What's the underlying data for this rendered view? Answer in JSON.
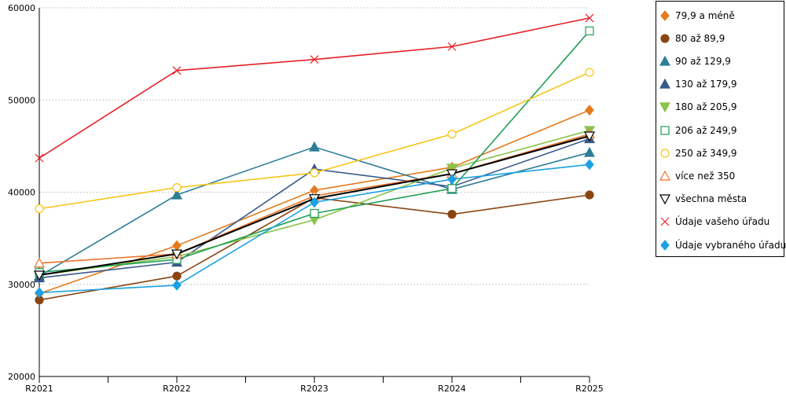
{
  "chart_data": {
    "type": "line",
    "categories": [
      "R2021",
      "R2022",
      "R2023",
      "R2024",
      "R2025"
    ],
    "ylim": [
      20000,
      60000
    ],
    "yticks": [
      20000,
      30000,
      40000,
      50000,
      60000
    ],
    "ytick_labels": [
      "20000",
      "30000",
      "40000",
      "50000",
      "60000"
    ],
    "grid": true,
    "legend_position": "right",
    "series": [
      {
        "name": "79,9 a méně",
        "color": "#E57A1E",
        "marker": "diamond",
        "filled": true,
        "values": [
          29000,
          34200,
          40200,
          42700,
          48900
        ]
      },
      {
        "name": "80 až 89,9",
        "color": "#8B4513",
        "marker": "circle",
        "filled": true,
        "values": [
          28300,
          30900,
          39400,
          37600,
          39700
        ]
      },
      {
        "name": "90 až 129,9",
        "color": "#2E7D97",
        "marker": "triangle",
        "filled": true,
        "values": [
          30900,
          39700,
          44900,
          40300,
          44300
        ]
      },
      {
        "name": "130 až 179,9",
        "color": "#3A5A8C",
        "marker": "triangle",
        "filled": true,
        "values": [
          30700,
          32400,
          42500,
          40600,
          45800
        ]
      },
      {
        "name": "180 až 205,9",
        "color": "#8BC34A",
        "marker": "triangle-down",
        "filled": true,
        "values": [
          31000,
          33000,
          37000,
          42600,
          46700
        ]
      },
      {
        "name": "206 až 249,9",
        "color": "#1FA055",
        "marker": "square",
        "filled": false,
        "values": [
          31300,
          32700,
          37700,
          40400,
          57500
        ]
      },
      {
        "name": "250 až 349,9",
        "color": "#F5C518",
        "marker": "circle",
        "filled": false,
        "values": [
          38200,
          40500,
          42100,
          46300,
          53000
        ]
      },
      {
        "name": "více než 350",
        "color": "#E8732A",
        "marker": "triangle",
        "filled": false,
        "values": [
          32300,
          33300,
          39600,
          42000,
          46300
        ]
      },
      {
        "name": "všechna města",
        "color": "#000000",
        "marker": "triangle-down",
        "filled": false,
        "values": [
          31000,
          33300,
          39300,
          42000,
          46100
        ]
      },
      {
        "name": "Údaje vašeho úřadu",
        "color": "#E81E25",
        "marker": "x",
        "filled": false,
        "values": [
          43700,
          53200,
          54400,
          55800,
          58900
        ]
      },
      {
        "name": "Údaje vybraného úřadu",
        "color": "#1BA1E2",
        "marker": "diamond",
        "filled": true,
        "values": [
          29100,
          29900,
          38900,
          41400,
          43000
        ]
      }
    ]
  }
}
